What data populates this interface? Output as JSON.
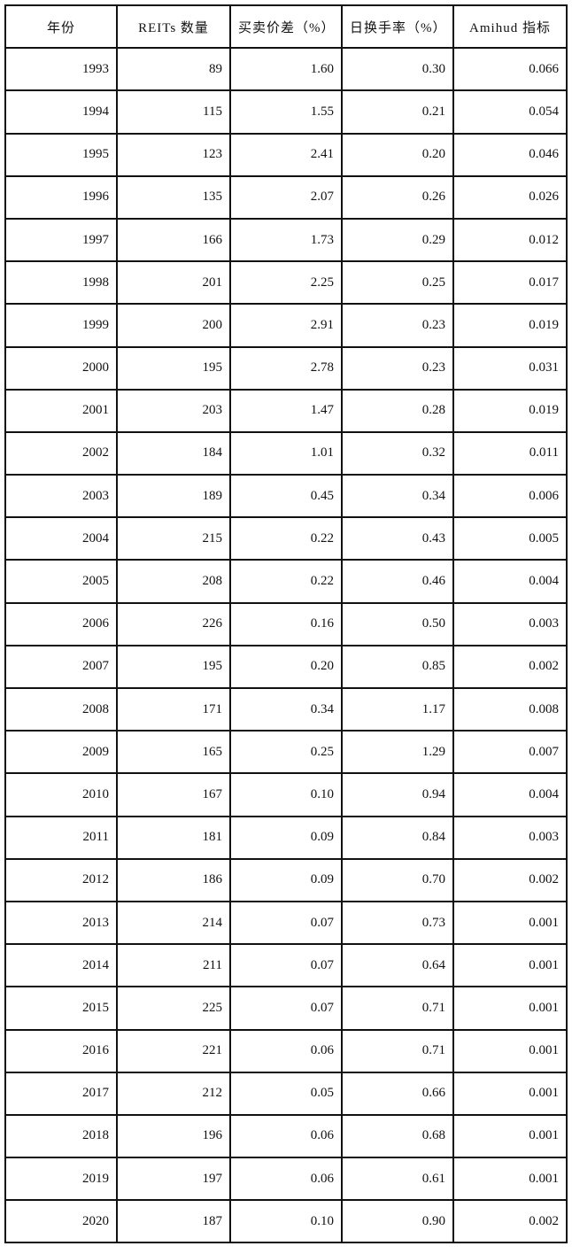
{
  "table": {
    "headers": [
      "年份",
      "REITs 数量",
      "买卖价差（%）",
      "日换手率（%）",
      "Amihud 指标"
    ],
    "rows": [
      [
        "1993",
        "89",
        "1.60",
        "0.30",
        "0.066"
      ],
      [
        "1994",
        "115",
        "1.55",
        "0.21",
        "0.054"
      ],
      [
        "1995",
        "123",
        "2.41",
        "0.20",
        "0.046"
      ],
      [
        "1996",
        "135",
        "2.07",
        "0.26",
        "0.026"
      ],
      [
        "1997",
        "166",
        "1.73",
        "0.29",
        "0.012"
      ],
      [
        "1998",
        "201",
        "2.25",
        "0.25",
        "0.017"
      ],
      [
        "1999",
        "200",
        "2.91",
        "0.23",
        "0.019"
      ],
      [
        "2000",
        "195",
        "2.78",
        "0.23",
        "0.031"
      ],
      [
        "2001",
        "203",
        "1.47",
        "0.28",
        "0.019"
      ],
      [
        "2002",
        "184",
        "1.01",
        "0.32",
        "0.011"
      ],
      [
        "2003",
        "189",
        "0.45",
        "0.34",
        "0.006"
      ],
      [
        "2004",
        "215",
        "0.22",
        "0.43",
        "0.005"
      ],
      [
        "2005",
        "208",
        "0.22",
        "0.46",
        "0.004"
      ],
      [
        "2006",
        "226",
        "0.16",
        "0.50",
        "0.003"
      ],
      [
        "2007",
        "195",
        "0.20",
        "0.85",
        "0.002"
      ],
      [
        "2008",
        "171",
        "0.34",
        "1.17",
        "0.008"
      ],
      [
        "2009",
        "165",
        "0.25",
        "1.29",
        "0.007"
      ],
      [
        "2010",
        "167",
        "0.10",
        "0.94",
        "0.004"
      ],
      [
        "2011",
        "181",
        "0.09",
        "0.84",
        "0.003"
      ],
      [
        "2012",
        "186",
        "0.09",
        "0.70",
        "0.002"
      ],
      [
        "2013",
        "214",
        "0.07",
        "0.73",
        "0.001"
      ],
      [
        "2014",
        "211",
        "0.07",
        "0.64",
        "0.001"
      ],
      [
        "2015",
        "225",
        "0.07",
        "0.71",
        "0.001"
      ],
      [
        "2016",
        "221",
        "0.06",
        "0.71",
        "0.001"
      ],
      [
        "2017",
        "212",
        "0.05",
        "0.66",
        "0.001"
      ],
      [
        "2018",
        "196",
        "0.06",
        "0.68",
        "0.001"
      ],
      [
        "2019",
        "197",
        "0.06",
        "0.61",
        "0.001"
      ],
      [
        "2020",
        "187",
        "0.10",
        "0.90",
        "0.002"
      ]
    ]
  }
}
